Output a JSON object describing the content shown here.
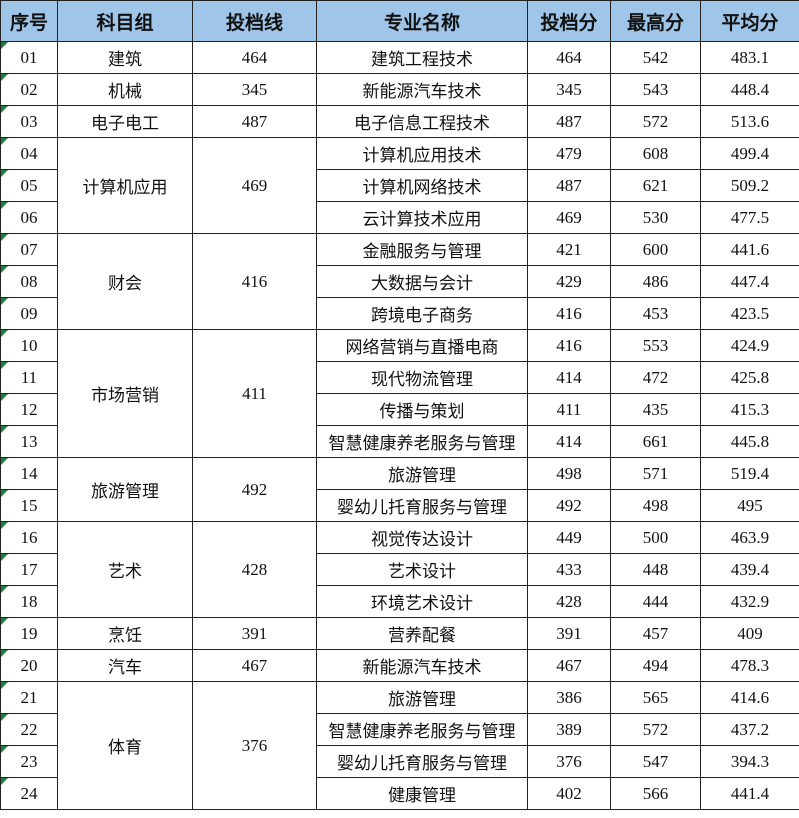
{
  "table": {
    "header": [
      "序号",
      "科目组",
      "投档线",
      "专业名称",
      "投档分",
      "最高分",
      "平均分"
    ],
    "groups": [
      {
        "name": "建筑",
        "line": 464,
        "rows": [
          [
            "01",
            "建筑工程技术",
            464,
            542,
            483.1
          ]
        ]
      },
      {
        "name": "机械",
        "line": 345,
        "rows": [
          [
            "02",
            "新能源汽车技术",
            345,
            543,
            448.4
          ]
        ]
      },
      {
        "name": "电子电工",
        "line": 487,
        "rows": [
          [
            "03",
            "电子信息工程技术",
            487,
            572,
            513.6
          ]
        ]
      },
      {
        "name": "计算机应用",
        "line": 469,
        "rows": [
          [
            "04",
            "计算机应用技术",
            479,
            608,
            499.4
          ],
          [
            "05",
            "计算机网络技术",
            487,
            621,
            509.2
          ],
          [
            "06",
            "云计算技术应用",
            469,
            530,
            477.5
          ]
        ]
      },
      {
        "name": "财会",
        "line": 416,
        "rows": [
          [
            "07",
            "金融服务与管理",
            421,
            600,
            441.6
          ],
          [
            "08",
            "大数据与会计",
            429,
            486,
            447.4
          ],
          [
            "09",
            "跨境电子商务",
            416,
            453,
            423.5
          ]
        ]
      },
      {
        "name": "市场营销",
        "line": 411,
        "rows": [
          [
            "10",
            "网络营销与直播电商",
            416,
            553,
            424.9
          ],
          [
            "11",
            "现代物流管理",
            414,
            472,
            425.8
          ],
          [
            "12",
            "传播与策划",
            411,
            435,
            415.3
          ],
          [
            "13",
            "智慧健康养老服务与管理",
            414,
            661,
            445.8
          ]
        ]
      },
      {
        "name": "旅游管理",
        "line": 492,
        "rows": [
          [
            "14",
            "旅游管理",
            498,
            571,
            519.4
          ],
          [
            "15",
            "婴幼儿托育服务与管理",
            492,
            498,
            495
          ]
        ]
      },
      {
        "name": "艺术",
        "line": 428,
        "rows": [
          [
            "16",
            "视觉传达设计",
            449,
            500,
            463.9
          ],
          [
            "17",
            "艺术设计",
            433,
            448,
            439.4
          ],
          [
            "18",
            "环境艺术设计",
            428,
            444,
            432.9
          ]
        ]
      },
      {
        "name": "烹饪",
        "line": 391,
        "rows": [
          [
            "19",
            "营养配餐",
            391,
            457,
            409
          ]
        ]
      },
      {
        "name": "汽车",
        "line": 467,
        "rows": [
          [
            "20",
            "新能源汽车技术",
            467,
            494,
            478.3
          ]
        ]
      },
      {
        "name": "体育",
        "line": 376,
        "rows": [
          [
            "21",
            "旅游管理",
            386,
            565,
            414.6
          ],
          [
            "22",
            "智慧健康养老服务与管理",
            389,
            572,
            437.2
          ],
          [
            "23",
            "婴幼儿托育服务与管理",
            376,
            547,
            394.3
          ],
          [
            "24",
            "健康管理",
            402,
            566,
            441.4
          ]
        ]
      }
    ]
  }
}
